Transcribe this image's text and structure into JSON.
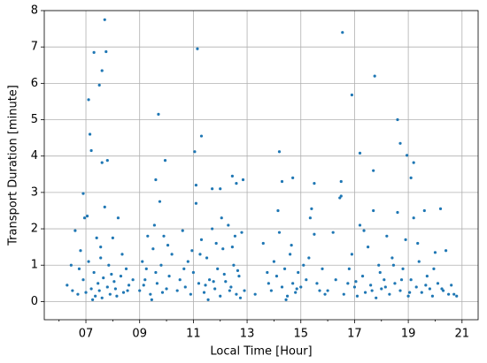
{
  "chart_data": {
    "type": "scatter",
    "xlabel": "Local Time [Hour]",
    "ylabel": "Transport Duration [minute]",
    "color": "#1f77b4",
    "grid": true,
    "xlim": [
      5.45,
      21.6
    ],
    "ylim": [
      -0.5,
      8
    ],
    "xticks": [
      {
        "value": 7,
        "label": "07"
      },
      {
        "value": 9,
        "label": "09"
      },
      11,
      13,
      15,
      17,
      19,
      21
    ],
    "xminorticks": [
      6,
      8,
      10,
      12,
      14,
      16,
      18,
      20
    ],
    "yticks": [
      0,
      1,
      2,
      3,
      4,
      5,
      6,
      7,
      8
    ],
    "x": [
      7.3,
      7.7,
      7.75,
      7.6,
      7.5,
      7.1,
      7.15,
      7.2,
      7.6,
      7.8,
      6.9,
      9.7,
      9.95,
      11.15,
      11.3,
      11.05,
      9.6,
      12.45,
      12.6,
      14.2,
      14.3,
      16.55,
      16.9,
      17.75,
      17.2,
      18.6,
      18.7,
      18.95,
      19.2,
      19.1,
      17.7,
      16.5,
      15.5,
      14.7,
      11.1,
      11.7,
      12.0,
      12.85,
      6.3,
      6.5,
      6.6,
      6.7,
      6.8,
      6.9,
      7.0,
      7.05,
      7.1,
      7.2,
      7.3,
      7.35,
      7.4,
      7.45,
      7.5,
      7.55,
      7.6,
      7.65,
      7.7,
      7.8,
      7.85,
      7.9,
      8.0,
      8.05,
      8.1,
      8.2,
      8.3,
      8.4,
      8.5,
      8.6,
      6.45,
      6.75,
      6.95,
      7.25,
      7.55,
      7.95,
      8.15,
      8.35,
      8.55,
      8.75,
      9.0,
      9.1,
      9.2,
      9.3,
      9.4,
      9.5,
      9.55,
      9.65,
      9.8,
      9.9,
      10.0,
      10.1,
      10.2,
      9.25,
      9.45,
      9.75,
      9.85,
      10.05,
      9.15,
      9.6,
      10.4,
      10.5,
      10.6,
      10.7,
      10.8,
      10.9,
      11.0,
      11.1,
      11.2,
      11.3,
      11.4,
      11.5,
      11.6,
      11.7,
      11.8,
      11.9,
      12.0,
      12.1,
      12.2,
      12.3,
      12.4,
      12.5,
      12.6,
      12.7,
      12.8,
      12.9,
      11.25,
      11.55,
      11.85,
      12.15,
      12.45,
      12.75,
      10.65,
      10.95,
      11.45,
      11.75,
      12.05,
      12.35,
      12.65,
      12.55,
      13.3,
      13.6,
      13.8,
      13.9,
      14.0,
      14.1,
      14.2,
      14.3,
      14.4,
      14.5,
      14.6,
      14.7,
      14.8,
      14.9,
      15.0,
      15.2,
      15.3,
      15.4,
      15.5,
      15.7,
      15.8,
      15.9,
      14.15,
      14.45,
      14.65,
      15.1,
      15.6,
      13.75,
      14.85,
      15.35,
      16.0,
      16.2,
      16.3,
      16.5,
      16.6,
      16.8,
      16.9,
      17.0,
      17.1,
      17.2,
      17.3,
      17.4,
      17.5,
      17.6,
      17.7,
      17.8,
      17.9,
      18.0,
      18.1,
      18.2,
      18.3,
      18.4,
      18.5,
      18.6,
      18.7,
      18.8,
      18.9,
      19.0,
      19.1,
      19.2,
      19.3,
      19.4,
      19.5,
      19.6,
      19.7,
      19.8,
      19.9,
      20.0,
      20.1,
      20.2,
      20.3,
      20.4,
      20.5,
      20.6,
      20.7,
      20.8,
      17.05,
      17.35,
      17.65,
      17.95,
      18.15,
      18.45,
      18.75,
      19.05,
      19.35,
      19.65,
      19.95,
      20.25,
      16.45,
      16.75
    ],
    "values": [
      6.85,
      7.75,
      6.87,
      6.35,
      5.95,
      5.55,
      4.6,
      4.15,
      3.82,
      3.88,
      2.97,
      5.15,
      3.88,
      6.95,
      4.55,
      4.12,
      3.35,
      3.45,
      3.25,
      4.12,
      3.3,
      7.4,
      5.68,
      6.2,
      4.08,
      5.0,
      4.35,
      4.02,
      3.82,
      3.4,
      3.6,
      3.3,
      3.25,
      3.4,
      3.2,
      3.1,
      3.1,
      3.35,
      0.45,
      0.3,
      1.95,
      0.2,
      1.4,
      0.6,
      0.25,
      2.35,
      1.1,
      0.35,
      0.8,
      0.15,
      1.75,
      0.5,
      0.3,
      1.2,
      0.1,
      0.65,
      2.6,
      0.4,
      1.0,
      0.2,
      1.75,
      0.55,
      0.35,
      2.3,
      0.7,
      0.25,
      0.9,
      0.45,
      1.0,
      0.9,
      2.3,
      0.05,
      1.5,
      0.75,
      0.15,
      1.3,
      0.3,
      0.6,
      0.3,
      1.1,
      0.6,
      1.8,
      0.2,
      1.45,
      2.1,
      0.5,
      1.0,
      1.8,
      0.35,
      0.7,
      1.3,
      0.9,
      0.05,
      2.75,
      0.25,
      1.55,
      0.45,
      0.8,
      0.3,
      0.6,
      1.95,
      0.4,
      1.1,
      0.2,
      0.8,
      2.7,
      0.5,
      1.7,
      0.25,
      1.2,
      0.6,
      2.0,
      0.35,
      0.9,
      0.15,
      1.45,
      0.55,
      2.1,
      0.4,
      1.0,
      0.2,
      0.7,
      1.9,
      0.3,
      1.3,
      0.05,
      1.6,
      0.75,
      1.5,
      0.1,
      0.9,
      1.4,
      0.45,
      0.55,
      2.3,
      0.3,
      0.85,
      1.8,
      0.2,
      1.6,
      0.5,
      0.3,
      1.1,
      0.7,
      1.9,
      0.4,
      0.9,
      0.15,
      1.3,
      0.5,
      0.25,
      0.8,
      0.4,
      0.6,
      1.2,
      2.55,
      1.85,
      0.3,
      0.9,
      0.2,
      2.5,
      0.05,
      1.55,
      1.0,
      0.5,
      0.8,
      0.35,
      2.3,
      0.3,
      1.9,
      0.6,
      2.9,
      0.2,
      0.9,
      1.3,
      0.4,
      0.15,
      2.1,
      0.7,
      0.25,
      1.5,
      0.45,
      2.5,
      0.1,
      1.0,
      0.35,
      0.6,
      1.8,
      0.2,
      1.2,
      0.5,
      2.45,
      0.3,
      0.9,
      1.7,
      0.15,
      0.6,
      2.3,
      0.4,
      1.1,
      0.25,
      2.5,
      0.7,
      0.35,
      0.15,
      1.35,
      0.5,
      2.55,
      0.3,
      1.4,
      0.2,
      0.45,
      0.2,
      0.15,
      0.55,
      1.95,
      0.3,
      0.8,
      0.4,
      1.0,
      0.6,
      0.25,
      1.6,
      0.45,
      0.9,
      0.35,
      2.85,
      0.5
    ]
  }
}
